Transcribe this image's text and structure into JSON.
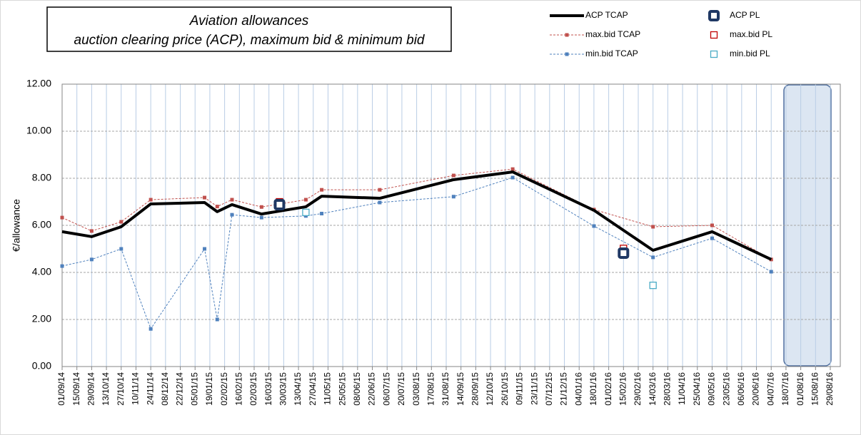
{
  "chart_data": {
    "type": "line",
    "title": [
      "Aviation allowances",
      "auction clearing price (ACP), maximum bid & minimum bid"
    ],
    "y_label": "€/allowance",
    "xlim": [
      "01/09/14",
      "29/08/16"
    ],
    "xticks": [
      "01/09/14",
      "15/09/14",
      "29/09/14",
      "13/10/14",
      "27/10/14",
      "10/11/14",
      "24/11/14",
      "08/12/14",
      "22/12/14",
      "05/01/15",
      "19/01/15",
      "02/02/15",
      "16/02/15",
      "02/03/15",
      "16/03/15",
      "30/03/15",
      "13/04/15",
      "27/04/15",
      "11/05/15",
      "25/05/15",
      "08/06/15",
      "22/06/15",
      "06/07/15",
      "20/07/15",
      "03/08/15",
      "17/08/15",
      "31/08/15",
      "14/09/15",
      "28/09/15",
      "12/10/15",
      "26/10/15",
      "09/11/15",
      "23/11/15",
      "07/12/15",
      "21/12/15",
      "04/01/16",
      "18/01/16",
      "01/02/16",
      "15/02/16",
      "29/02/16",
      "14/03/16",
      "28/03/16",
      "11/04/16",
      "25/04/16",
      "09/05/16",
      "23/05/16",
      "06/06/16",
      "20/06/16",
      "04/07/16",
      "18/07/16",
      "01/08/16",
      "15/08/16",
      "29/08/16"
    ],
    "ylim": [
      0,
      12
    ],
    "yticks": [
      {
        "value": 0,
        "label": "0.00"
      },
      {
        "value": 2,
        "label": "2.00"
      },
      {
        "value": 4,
        "label": "4.00"
      },
      {
        "value": 6,
        "label": "6.00"
      },
      {
        "value": 8,
        "label": "8.00"
      },
      {
        "value": 10,
        "label": "10.00"
      },
      {
        "value": 12,
        "label": "12.00"
      }
    ],
    "grid": true,
    "series": [
      {
        "name": "ACP TCAP",
        "color": "#000000",
        "style": "line",
        "x": [
          "01/09/14",
          "29/09/14",
          "27/10/14",
          "24/11/14",
          "14/01/15",
          "26/01/15",
          "09/02/15",
          "09/03/15",
          "20/04/15",
          "05/05/15",
          "29/06/15",
          "07/09/15",
          "02/11/15",
          "18/01/16",
          "14/03/16",
          "09/05/16",
          "04/07/16"
        ],
        "values": [
          5.73,
          5.52,
          5.94,
          6.91,
          6.97,
          6.58,
          6.88,
          6.48,
          6.79,
          7.24,
          7.15,
          7.94,
          8.27,
          6.64,
          4.94,
          5.73,
          4.55
        ]
      },
      {
        "name": "max.bid TCAP",
        "color": "#c0504d",
        "style": "dashed",
        "x": [
          "01/09/14",
          "29/09/14",
          "27/10/14",
          "24/11/14",
          "14/01/15",
          "26/01/15",
          "09/02/15",
          "09/03/15",
          "20/04/15",
          "05/05/15",
          "29/06/15",
          "07/09/15",
          "02/11/15",
          "18/01/16",
          "14/03/16",
          "09/05/16",
          "04/07/16"
        ],
        "values": [
          6.33,
          5.76,
          6.15,
          7.09,
          7.18,
          6.8,
          7.09,
          6.78,
          7.09,
          7.51,
          7.51,
          8.12,
          8.39,
          6.67,
          5.94,
          6.0,
          4.55
        ]
      },
      {
        "name": "min.bid TCAP",
        "color": "#4f81bd",
        "style": "dashed",
        "x": [
          "01/09/14",
          "29/09/14",
          "27/10/14",
          "24/11/14",
          "14/01/15",
          "26/01/15",
          "09/02/15",
          "09/03/15",
          "20/04/15",
          "05/05/15",
          "29/06/15",
          "07/09/15",
          "02/11/15",
          "18/01/16",
          "14/03/16",
          "09/05/16",
          "04/07/16"
        ],
        "values": [
          4.27,
          4.55,
          5.0,
          1.6,
          5.0,
          2.0,
          6.45,
          6.33,
          6.4,
          6.5,
          6.97,
          7.22,
          8.03,
          5.97,
          4.64,
          5.45,
          4.03
        ]
      },
      {
        "name": "ACP PL",
        "color": "#1f3864",
        "style": "filled-square",
        "x": [
          "26/03/15",
          "15/02/16"
        ],
        "values": [
          6.88,
          4.82
        ]
      },
      {
        "name": "max.bid PL",
        "color": "#c00000",
        "style": "hollow-square",
        "x": [
          "26/03/15",
          "15/02/16"
        ],
        "values": [
          7.0,
          5.02
        ]
      },
      {
        "name": "min.bid PL",
        "color": "#4bacc6",
        "style": "hollow-square",
        "x": [
          "20/04/15",
          "14/03/16"
        ],
        "values": [
          6.55,
          3.45
        ]
      }
    ]
  }
}
